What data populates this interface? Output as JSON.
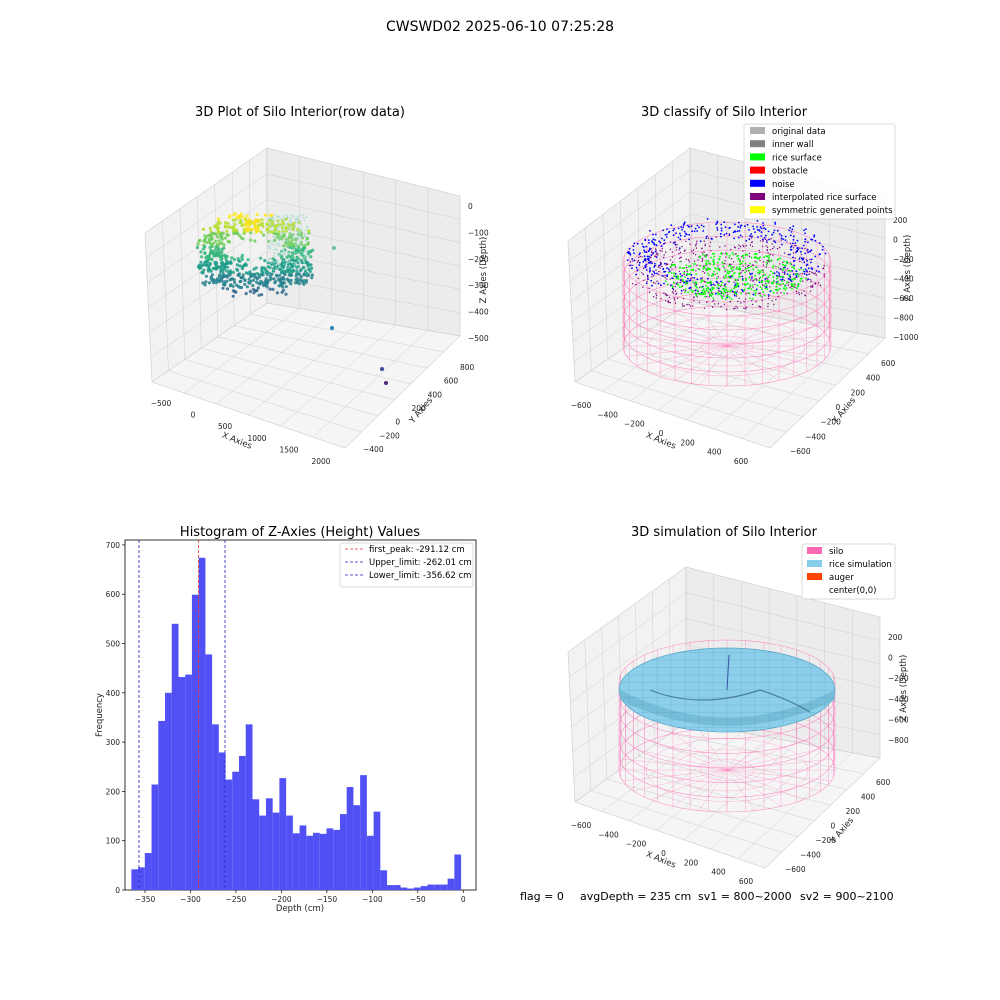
{
  "suptitle": "CWSWD02 2025-06-10 07:25:28",
  "status": {
    "flag": "flag = 0",
    "avg_depth": "avgDepth = 235 cm",
    "sv1": "sv1 = 800~2000",
    "sv2": "sv2 = 900~2100"
  },
  "colors": {
    "hist_bar": "#5050f5",
    "first_peak": "#e03030",
    "limits": "#2020c0",
    "silo": "#ff69b4",
    "rice_simulation": "#87ceeb",
    "auger": "#ff4500"
  },
  "chart_data": [
    {
      "type": "scatter3d",
      "title": "3D Plot of Silo Interior(row data)",
      "xlabel": "X Axies",
      "ylabel": "Y Axies",
      "zlabel": "Z Axies (Depth)",
      "x_ticks": [
        "−500",
        "0",
        "500",
        "1000",
        "1500",
        "2000"
      ],
      "y_ticks": [
        "−400",
        "−200",
        "0",
        "200",
        "400",
        "600",
        "800"
      ],
      "z_ticks": [
        "0",
        "−100",
        "−200",
        "−300",
        "−400",
        "−500"
      ],
      "xlim": [
        -600,
        2100
      ],
      "ylim": [
        -450,
        850
      ],
      "zlim": [
        -520,
        20
      ],
      "colormap": "viridis"
    },
    {
      "type": "scatter3d",
      "title": "3D classify of Silo Interior",
      "xlabel": "X Axies",
      "ylabel": "Y Axies",
      "zlabel": "Z Axies (Depth)",
      "x_ticks": [
        "−600",
        "−400",
        "−200",
        "0",
        "200",
        "400",
        "600"
      ],
      "y_ticks": [
        "−600",
        "−400",
        "−200",
        "0",
        "200",
        "400",
        "600"
      ],
      "z_ticks": [
        "200",
        "0",
        "−200",
        "−400",
        "−600",
        "−800",
        "−1000"
      ],
      "legend_position": "top-right",
      "legend": [
        {
          "label": "original data",
          "color": "#b0b0b0"
        },
        {
          "label": "inner wall",
          "color": "#808080"
        },
        {
          "label": "rice surface",
          "color": "#00ff00"
        },
        {
          "label": "obstacle",
          "color": "#ff0000"
        },
        {
          "label": "noise",
          "color": "#0000ff"
        },
        {
          "label": "interpolated rice surface",
          "color": "#800080"
        },
        {
          "label": "symmetric generated points",
          "color": "#ffff00"
        }
      ]
    },
    {
      "type": "bar",
      "title": "Histogram of Z-Axies (Height) Values",
      "xlabel": "Depth (cm)",
      "ylabel": "Frequency",
      "xlim": [
        -372,
        14
      ],
      "ylim": [
        0,
        710
      ],
      "x_ticks": [
        -350,
        -300,
        -250,
        -200,
        -150,
        -100,
        -50,
        0
      ],
      "y_ticks": [
        0,
        100,
        200,
        300,
        400,
        500,
        600,
        700
      ],
      "bin_start": -365.0,
      "bin_width": 7.4,
      "values": [
        42,
        46,
        75,
        214,
        343,
        400,
        540,
        432,
        437,
        599,
        674,
        478,
        336,
        279,
        224,
        240,
        272,
        336,
        184,
        151,
        186,
        157,
        227,
        151,
        115,
        131,
        110,
        116,
        114,
        125,
        122,
        154,
        209,
        172,
        233,
        110,
        159,
        40,
        10,
        10,
        5,
        3,
        5,
        8,
        11,
        11,
        11,
        23,
        72
      ],
      "vlines": [
        {
          "label": "first_peak: -291.12 cm",
          "x": -291.12,
          "style": "first_peak"
        },
        {
          "label": "Upper_limit: -262.01 cm",
          "x": -262.01,
          "style": "limit"
        },
        {
          "label": "Lower_limit: -356.62 cm",
          "x": -356.62,
          "style": "limit"
        }
      ],
      "legend_position": "top-right",
      "x_tick_labels": [
        "−350",
        "−300",
        "−250",
        "−200",
        "−150",
        "−100",
        "−50",
        "0"
      ],
      "y_tick_labels": [
        "0",
        "100",
        "200",
        "300",
        "400",
        "500",
        "600",
        "700"
      ]
    },
    {
      "type": "surface3d",
      "title": "3D simulation of Silo Interior",
      "xlabel": "X Axies",
      "ylabel": "Y Axies",
      "zlabel": "Z Axies (Depth)",
      "x_ticks": [
        "−600",
        "−400",
        "−200",
        "0",
        "200",
        "400",
        "600"
      ],
      "y_ticks": [
        "−600",
        "−400",
        "−200",
        "0",
        "200",
        "400",
        "600"
      ],
      "z_ticks": [
        "200",
        "0",
        "−200",
        "−400",
        "−600",
        "−800"
      ],
      "legend_position": "top-right",
      "legend": [
        {
          "label": "silo",
          "color": "#ff69b4"
        },
        {
          "label": "rice simulation",
          "color": "#87ceeb"
        },
        {
          "label": "auger",
          "color": "#ff4500"
        },
        {
          "label": "center(0,0)",
          "color": "#ffffff"
        }
      ]
    }
  ]
}
